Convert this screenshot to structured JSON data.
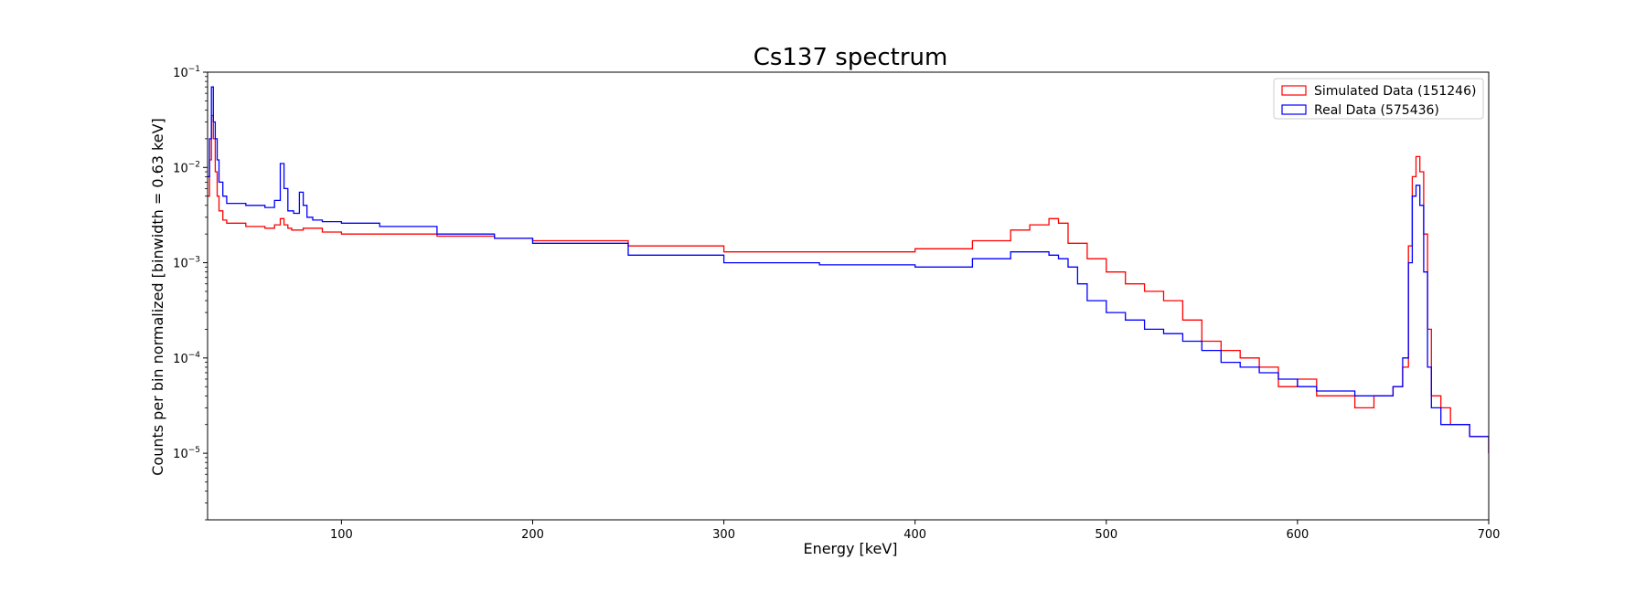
{
  "chart_data": {
    "type": "line",
    "title": "Cs137 spectrum",
    "xlabel": "Energy [keV]",
    "ylabel": "Counts per bin normalized [binwidth = 0.63 keV]",
    "xlim": [
      30,
      700
    ],
    "ylim": [
      2e-06,
      0.1
    ],
    "yscale": "log",
    "xticks": [
      100,
      200,
      300,
      400,
      500,
      600,
      700
    ],
    "xtick_labels": [
      "100",
      "200",
      "300",
      "400",
      "500",
      "600",
      "700"
    ],
    "yticks": [
      1e-05,
      0.0001,
      0.001,
      0.01,
      0.1
    ],
    "ytick_labels": [
      {
        "base": "10",
        "exp": "−5"
      },
      {
        "base": "10",
        "exp": "−4"
      },
      {
        "base": "10",
        "exp": "−3"
      },
      {
        "base": "10",
        "exp": "−2"
      },
      {
        "base": "10",
        "exp": "−1"
      }
    ],
    "grid": false,
    "legend_position": "top-right",
    "series": [
      {
        "name": "Simulated Data (151246)",
        "color": "#ff0000",
        "x": [
          30,
          31,
          32,
          33,
          34,
          35,
          36,
          38,
          40,
          50,
          60,
          65,
          68,
          70,
          72,
          74,
          76,
          80,
          90,
          100,
          120,
          150,
          180,
          200,
          250,
          300,
          350,
          400,
          430,
          450,
          460,
          470,
          475,
          480,
          490,
          500,
          510,
          520,
          530,
          540,
          550,
          560,
          570,
          580,
          590,
          600,
          610,
          620,
          630,
          640,
          650,
          655,
          658,
          660,
          662,
          664,
          666,
          668,
          670,
          675,
          680,
          690,
          700
        ],
        "y": [
          0.005,
          0.012,
          0.035,
          0.02,
          0.009,
          0.005,
          0.0035,
          0.0028,
          0.0026,
          0.0024,
          0.0023,
          0.0025,
          0.0029,
          0.0025,
          0.0023,
          0.0022,
          0.0022,
          0.0023,
          0.0021,
          0.002,
          0.002,
          0.0019,
          0.0018,
          0.0017,
          0.0015,
          0.0013,
          0.0013,
          0.0014,
          0.0017,
          0.0022,
          0.0025,
          0.0029,
          0.0026,
          0.0016,
          0.0011,
          0.0008,
          0.0006,
          0.0005,
          0.0004,
          0.00025,
          0.00015,
          0.00012,
          0.0001,
          8e-05,
          5e-05,
          6e-05,
          4e-05,
          4e-05,
          3e-05,
          4e-05,
          5e-05,
          8e-05,
          0.0015,
          0.008,
          0.013,
          0.009,
          0.002,
          0.0002,
          4e-05,
          3e-05,
          2e-05,
          1.5e-05,
          1e-05
        ]
      },
      {
        "name": "Real Data (575436)",
        "color": "#0000ff",
        "x": [
          30,
          31,
          32,
          33,
          34,
          35,
          36,
          38,
          40,
          50,
          60,
          65,
          68,
          70,
          72,
          75,
          78,
          80,
          82,
          85,
          90,
          100,
          120,
          150,
          180,
          200,
          250,
          300,
          350,
          400,
          430,
          450,
          460,
          470,
          475,
          480,
          485,
          490,
          500,
          510,
          520,
          530,
          540,
          550,
          560,
          570,
          580,
          590,
          600,
          610,
          620,
          630,
          640,
          650,
          655,
          658,
          660,
          662,
          664,
          666,
          668,
          670,
          675,
          680,
          690,
          700
        ],
        "y": [
          0.008,
          0.02,
          0.07,
          0.03,
          0.02,
          0.012,
          0.007,
          0.005,
          0.0042,
          0.004,
          0.0038,
          0.0045,
          0.011,
          0.006,
          0.0035,
          0.0033,
          0.0055,
          0.004,
          0.003,
          0.0028,
          0.0027,
          0.0026,
          0.0024,
          0.002,
          0.0018,
          0.0016,
          0.0012,
          0.001,
          0.00095,
          0.0009,
          0.0011,
          0.0013,
          0.0013,
          0.0012,
          0.0011,
          0.0009,
          0.0006,
          0.0004,
          0.0003,
          0.00025,
          0.0002,
          0.00018,
          0.00015,
          0.00012,
          9e-05,
          8e-05,
          7e-05,
          6e-05,
          5e-05,
          4.5e-05,
          4.5e-05,
          4e-05,
          4e-05,
          5e-05,
          0.0001,
          0.001,
          0.005,
          0.0065,
          0.004,
          0.0008,
          8e-05,
          3e-05,
          2e-05,
          2e-05,
          1.5e-05,
          1e-05
        ]
      }
    ]
  }
}
